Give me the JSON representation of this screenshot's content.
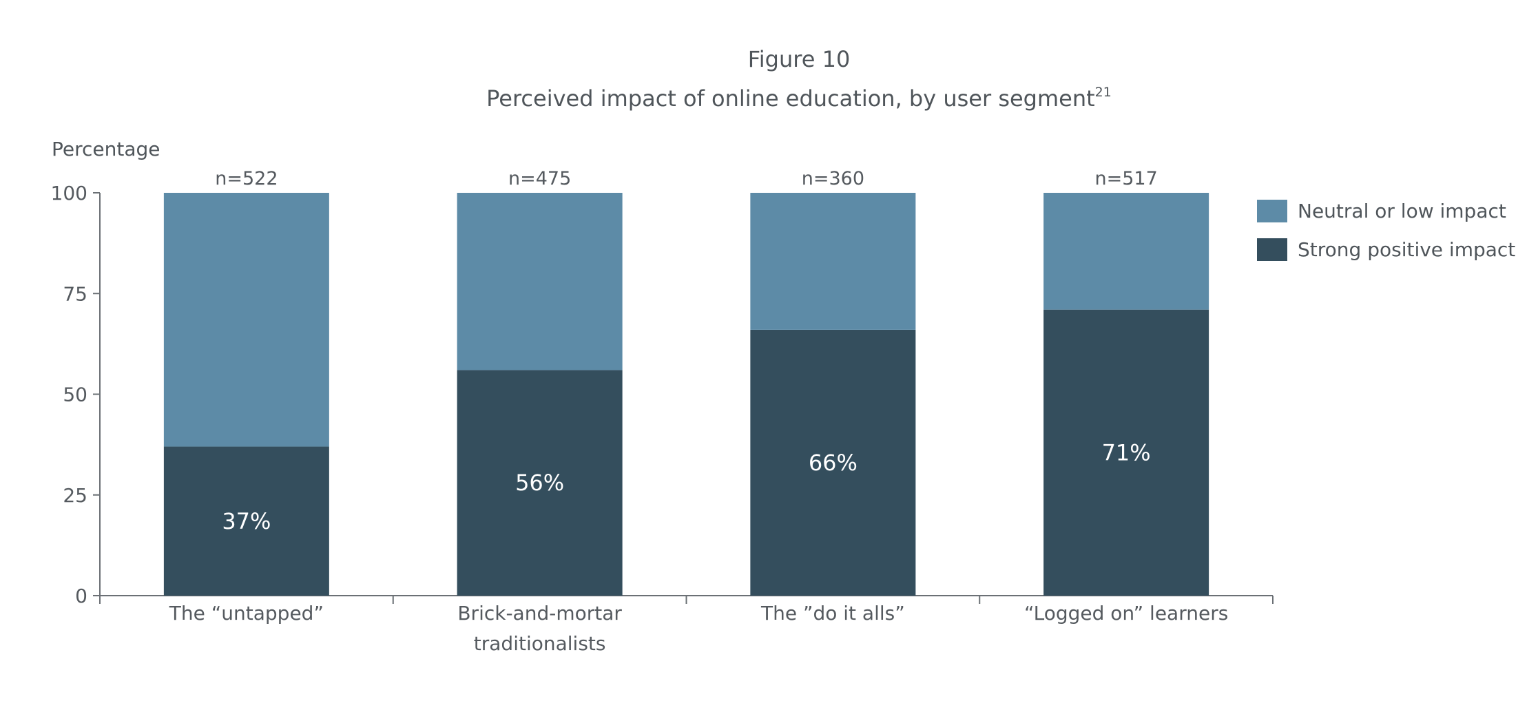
{
  "chart_data": {
    "type": "bar",
    "stacked": true,
    "title": "Figure 10",
    "subtitle": "Perceived impact of online education, by user segment",
    "subtitle_footnote": "21",
    "ylabel": "Percentage",
    "xlabel": "",
    "ylim": [
      0,
      100
    ],
    "yticks": [
      0,
      25,
      50,
      75,
      100
    ],
    "grid": false,
    "legend_position": "right",
    "categories": [
      [
        "The “untapped”"
      ],
      [
        "Brick-and-mortar",
        "traditionalists"
      ],
      [
        "The ”do it alls”"
      ],
      [
        "“Logged on” learners"
      ]
    ],
    "sample_sizes": [
      "n=522",
      "n=475",
      "n=360",
      "n=517"
    ],
    "series": [
      {
        "name": "Strong positive impact",
        "color": "#344e5d",
        "values": [
          37,
          56,
          66,
          71
        ],
        "labels": [
          "37%",
          "56%",
          "66%",
          "71%"
        ]
      },
      {
        "name": "Neutral or low impact",
        "color": "#5d8ba7",
        "values": [
          63,
          44,
          34,
          29
        ]
      }
    ],
    "legend": [
      {
        "name": "Neutral or low impact",
        "color": "#5d8ba7"
      },
      {
        "name": "Strong positive impact",
        "color": "#344e5d"
      }
    ]
  }
}
